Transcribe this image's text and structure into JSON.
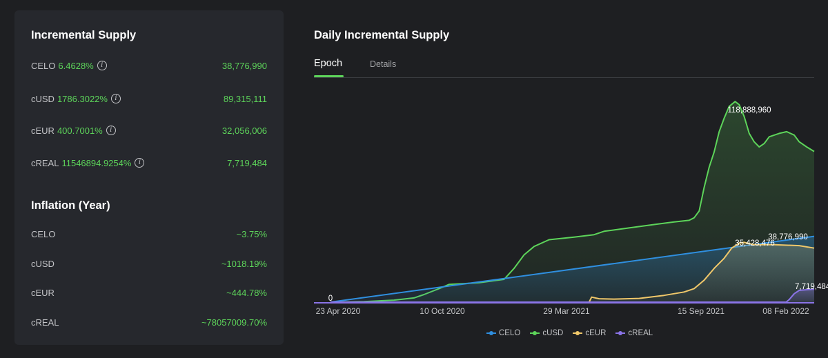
{
  "incremental_supply": {
    "title": "Incremental Supply",
    "items": [
      {
        "token": "CELO",
        "pct": "6.4628%",
        "value": "38,776,990"
      },
      {
        "token": "cUSD",
        "pct": "1786.3022%",
        "value": "89,315,111"
      },
      {
        "token": "cEUR",
        "pct": "400.7001%",
        "value": "32,056,006"
      },
      {
        "token": "cREAL",
        "pct": "11546894.9254%",
        "value": "7,719,484"
      }
    ]
  },
  "inflation": {
    "title": "Inflation (Year)",
    "items": [
      {
        "token": "CELO",
        "value": "~3.75%"
      },
      {
        "token": "cUSD",
        "value": "~1018.19%"
      },
      {
        "token": "cEUR",
        "value": "~444.78%"
      },
      {
        "token": "cREAL",
        "value": "~78057009.70%"
      }
    ]
  },
  "tabs": {
    "epoch": "Epoch",
    "details": "Details"
  },
  "colors": {
    "CELO": "#2f8fe0",
    "cUSD": "#5dd45a",
    "cEUR": "#f1c86a",
    "cREAL": "#8b74e8"
  },
  "chart_data": {
    "type": "area",
    "title": "Daily Incremental Supply",
    "x_ticks": [
      "23 Apr 2020",
      "10 Oct 2020",
      "29 Mar 2021",
      "15 Sep 2021",
      "08 Feb 2022"
    ],
    "ylim": [
      0,
      130000000
    ],
    "x_range": [
      0,
      1
    ],
    "legend": [
      "CELO",
      "cUSD",
      "cEUR",
      "cREAL"
    ],
    "labels": [
      {
        "series": "cUSD",
        "text": "118,888,960",
        "x": 0.838,
        "y": 118888960
      },
      {
        "series": "cEUR",
        "text": "35,428,476",
        "x": 0.86,
        "y": 35428476
      },
      {
        "series": "CELO",
        "text": "38,776,990",
        "x": 0.92,
        "y": 38776990
      },
      {
        "series": "cREAL",
        "text": "7,719,484",
        "x": 0.987,
        "y": 7719484
      },
      {
        "series": "start",
        "text": "0",
        "x": 0.033,
        "y": 0
      }
    ],
    "series": [
      {
        "name": "CELO",
        "points": [
          [
            0.033,
            0
          ],
          [
            1,
            39000000
          ]
        ]
      },
      {
        "name": "cUSD",
        "points": [
          [
            0.033,
            0
          ],
          [
            0.1,
            300000
          ],
          [
            0.16,
            1200000
          ],
          [
            0.2,
            2500000
          ],
          [
            0.22,
            4500000
          ],
          [
            0.25,
            8000000
          ],
          [
            0.27,
            10500000
          ],
          [
            0.3,
            11000000
          ],
          [
            0.33,
            11500000
          ],
          [
            0.38,
            13500000
          ],
          [
            0.4,
            20000000
          ],
          [
            0.42,
            28000000
          ],
          [
            0.44,
            33000000
          ],
          [
            0.47,
            37000000
          ],
          [
            0.52,
            38500000
          ],
          [
            0.56,
            40000000
          ],
          [
            0.58,
            42000000
          ],
          [
            0.63,
            44000000
          ],
          [
            0.68,
            46000000
          ],
          [
            0.72,
            47500000
          ],
          [
            0.75,
            48500000
          ],
          [
            0.76,
            50000000
          ],
          [
            0.77,
            54000000
          ],
          [
            0.78,
            68000000
          ],
          [
            0.79,
            80000000
          ],
          [
            0.8,
            89000000
          ],
          [
            0.81,
            101000000
          ],
          [
            0.82,
            109000000
          ],
          [
            0.83,
            116000000
          ],
          [
            0.842,
            118888960
          ],
          [
            0.85,
            117000000
          ],
          [
            0.86,
            110000000
          ],
          [
            0.87,
            100000000
          ],
          [
            0.88,
            95000000
          ],
          [
            0.89,
            92000000
          ],
          [
            0.9,
            94000000
          ],
          [
            0.91,
            98000000
          ],
          [
            0.93,
            100000000
          ],
          [
            0.945,
            101000000
          ],
          [
            0.96,
            99000000
          ],
          [
            0.97,
            95000000
          ],
          [
            0.985,
            92000000
          ],
          [
            1,
            89300000
          ]
        ]
      },
      {
        "name": "cEUR",
        "points": [
          [
            0.033,
            0
          ],
          [
            0.55,
            0
          ],
          [
            0.555,
            3000000
          ],
          [
            0.57,
            2000000
          ],
          [
            0.6,
            1800000
          ],
          [
            0.65,
            2200000
          ],
          [
            0.7,
            4000000
          ],
          [
            0.74,
            6000000
          ],
          [
            0.76,
            8000000
          ],
          [
            0.78,
            13000000
          ],
          [
            0.8,
            20000000
          ],
          [
            0.82,
            26000000
          ],
          [
            0.835,
            32000000
          ],
          [
            0.85,
            35000000
          ],
          [
            0.86,
            35428476
          ],
          [
            0.88,
            34000000
          ],
          [
            0.92,
            34000000
          ],
          [
            0.97,
            33500000
          ],
          [
            1,
            32000000
          ]
        ]
      },
      {
        "name": "cREAL",
        "points": [
          [
            0.033,
            0
          ],
          [
            0.944,
            0
          ],
          [
            0.95,
            1500000
          ],
          [
            0.96,
            5000000
          ],
          [
            0.97,
            7000000
          ],
          [
            1,
            7700000
          ]
        ]
      }
    ]
  }
}
